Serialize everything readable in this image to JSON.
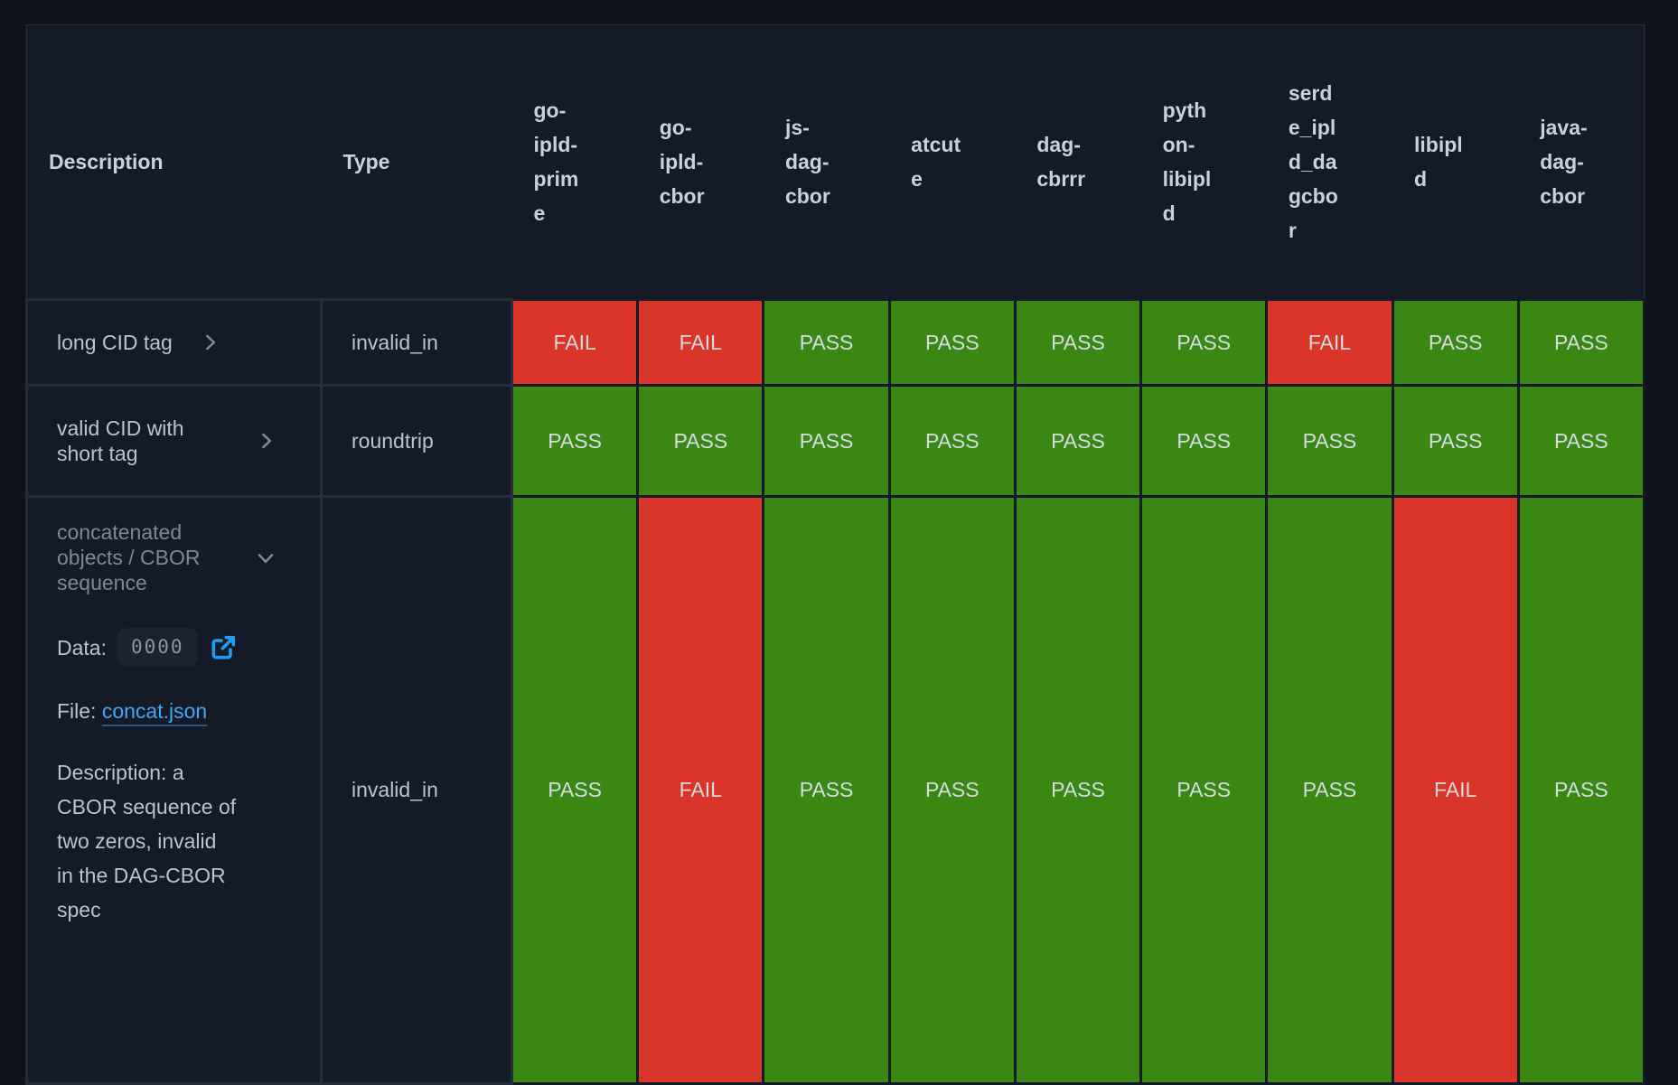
{
  "table": {
    "columns": [
      "Description",
      "Type",
      "go-ipld-prime",
      "go-ipld-cbor",
      "js-dag-cbor",
      "atcute",
      "dag-cbrrr",
      "python-libipld",
      "serde_ipld_dagcbor",
      "libipld",
      "java-dag-cbor"
    ],
    "rows": [
      {
        "description": "long CID tag",
        "expanded": false,
        "type": "invalid_in",
        "results": [
          "FAIL",
          "FAIL",
          "PASS",
          "PASS",
          "PASS",
          "PASS",
          "FAIL",
          "PASS",
          "PASS"
        ]
      },
      {
        "description": "valid CID with short tag",
        "expanded": false,
        "type": "roundtrip",
        "results": [
          "PASS",
          "PASS",
          "PASS",
          "PASS",
          "PASS",
          "PASS",
          "PASS",
          "PASS",
          "PASS"
        ]
      },
      {
        "description": "concatenated objects / CBOR sequence",
        "expanded": true,
        "type": "invalid_in",
        "details": {
          "data_label": "Data:",
          "data_value": "0000",
          "file_label": "File:",
          "file_link": "concat.json",
          "description_text": "Description: a CBOR sequence of two zeros, invalid in the DAG-CBOR spec"
        },
        "results": [
          "PASS",
          "FAIL",
          "PASS",
          "PASS",
          "PASS",
          "PASS",
          "PASS",
          "FAIL",
          "PASS"
        ]
      }
    ]
  },
  "icons": {
    "collapsed_chevron": "chevron-right-icon",
    "expanded_chevron": "chevron-down-icon",
    "external_link": "external-link-icon"
  },
  "colors": {
    "pass": "#3a8813",
    "fail": "#d93528",
    "status_text": "#d6dbe2",
    "link": "#3fa9f5",
    "icon_blue": "#1f9cf3",
    "page_bg": "#0f131c",
    "cell_bg": "#141a26",
    "grid_border": "#262c3b"
  }
}
